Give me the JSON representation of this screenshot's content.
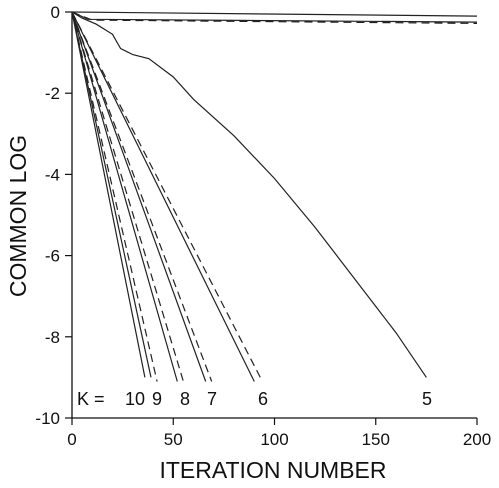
{
  "chart_data": {
    "type": "line",
    "xlabel": "ITERATION NUMBER",
    "ylabel": "COMMON LOG",
    "xlim": [
      0,
      200
    ],
    "ylim": [
      -10,
      0
    ],
    "x_ticks": [
      "0",
      "50",
      "100",
      "150",
      "200"
    ],
    "y_ticks": [
      "0",
      "-2",
      "-4",
      "-6",
      "-8",
      "-10"
    ],
    "grid": false,
    "k_prefix": "K =",
    "k_labels": [
      "10",
      "9",
      "8",
      "7",
      "6",
      "5"
    ],
    "series": [
      {
        "style": "solid",
        "x": [
          0,
          200
        ],
        "y": [
          0,
          -0.1
        ]
      },
      {
        "style": "solid",
        "x": [
          0,
          8,
          200
        ],
        "y": [
          0,
          -0.18,
          -0.25
        ]
      },
      {
        "style": "dashed",
        "x": [
          0,
          10,
          200
        ],
        "y": [
          0,
          -0.2,
          -0.28
        ]
      },
      {
        "style": "solid",
        "x": [
          0,
          5,
          12,
          20,
          24,
          30,
          38,
          50,
          60,
          80,
          100,
          120,
          140,
          160,
          175
        ],
        "y": [
          0,
          -0.15,
          -0.3,
          -0.55,
          -0.9,
          -1.05,
          -1.15,
          -1.6,
          -2.15,
          -3.05,
          -4.1,
          -5.3,
          -6.6,
          -7.9,
          -9.0
        ]
      },
      {
        "style": "solid",
        "x": [
          0,
          36
        ],
        "y": [
          0,
          -9.0
        ]
      },
      {
        "style": "solid",
        "x": [
          0,
          39
        ],
        "y": [
          0,
          -9.0
        ]
      },
      {
        "style": "dashed",
        "x": [
          0,
          42
        ],
        "y": [
          0,
          -9.1
        ]
      },
      {
        "style": "solid",
        "x": [
          0,
          52
        ],
        "y": [
          0,
          -9.1
        ]
      },
      {
        "style": "dashed",
        "x": [
          0,
          55
        ],
        "y": [
          0,
          -9.1
        ]
      },
      {
        "style": "solid",
        "x": [
          0,
          66
        ],
        "y": [
          0,
          -9.1
        ]
      },
      {
        "style": "dashed",
        "x": [
          0,
          69
        ],
        "y": [
          0,
          -9.1
        ]
      },
      {
        "style": "solid",
        "x": [
          0,
          90
        ],
        "y": [
          0,
          -9.1
        ]
      },
      {
        "style": "dashed",
        "x": [
          0,
          94
        ],
        "y": [
          0,
          -9.1
        ]
      }
    ]
  }
}
